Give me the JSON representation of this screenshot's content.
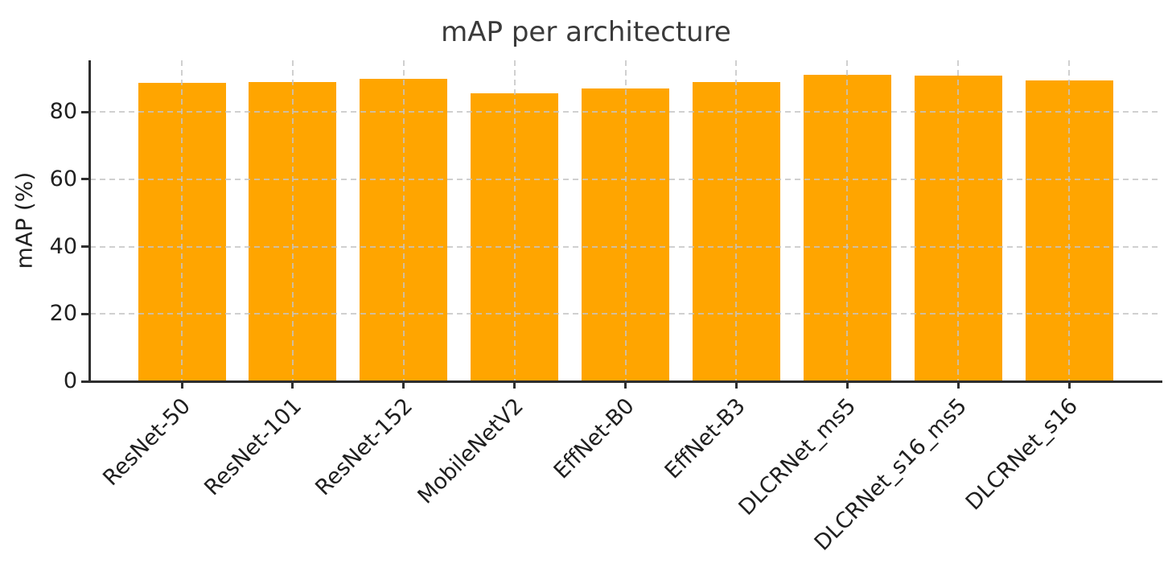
{
  "chart_data": {
    "type": "bar",
    "title": "mAP per architecture",
    "xlabel": "",
    "ylabel": "mAP (%)",
    "categories": [
      "ResNet-50",
      "ResNet-101",
      "ResNet-152",
      "MobileNetV2",
      "EffNet-B0",
      "EffNet-B3",
      "DLCRNet_ms5",
      "DLCRNet_s16_ms5",
      "DLCRNet_s16"
    ],
    "values": [
      88.5,
      88.8,
      89.7,
      85.5,
      87.0,
      88.8,
      91.1,
      90.7,
      89.3
    ],
    "yticks": [
      0,
      20,
      40,
      60,
      80
    ],
    "ylim": [
      0,
      95.3
    ],
    "grid": "both, dashed, drawn over bars",
    "legend": "none",
    "x_tick_rotation_deg": 45
  },
  "colors": {
    "bar": "#FFA500",
    "grid": "#c4c4c4",
    "axis": "#2e2e2e",
    "title_text": "#3a3a3a",
    "tick_text": "#1f1f1f",
    "background": "#ffffff"
  }
}
